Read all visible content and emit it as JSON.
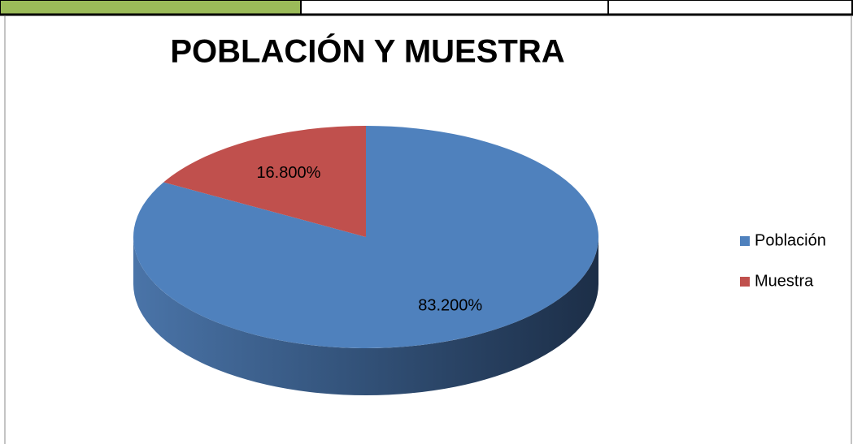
{
  "chart_data": {
    "type": "pie",
    "title": "POBLACIÓN Y MUESTRA",
    "categories": [
      "Población",
      "Muestra"
    ],
    "values": [
      83.2,
      16.8
    ],
    "value_labels": [
      "83.200%",
      "16.800%"
    ],
    "colors": [
      "#4f81bd",
      "#c0504d"
    ],
    "legend": "right"
  }
}
